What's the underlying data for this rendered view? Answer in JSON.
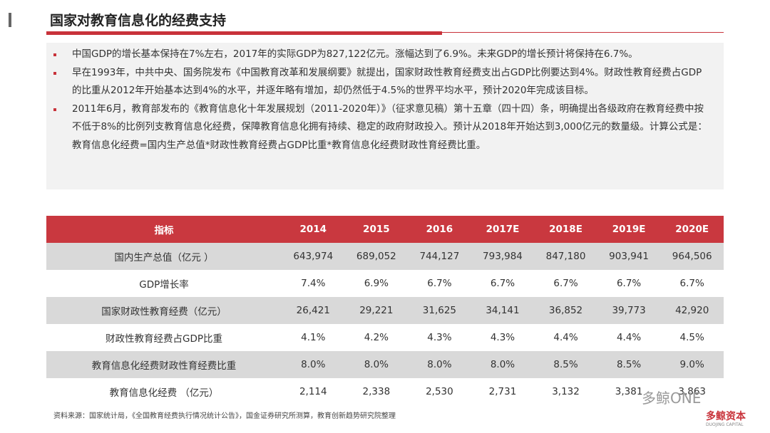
{
  "header": {
    "title": "国家对教育信息化的经费支持"
  },
  "bullets": [
    "中国GDP的增长基本保持在7%左右，2017年的实际GDP为827,122亿元。涨幅达到了6.9%。未来GDP的增长预计将保持在6.7%。",
    "早在1993年，中共中央、国务院发布《中国教育改革和发展纲要》就提出，国家财政性教育经费支出占GDP比例要达到4%。财政性教育经费占GDP的比重从2012年开始基本达到4%的水平，并逐年略有增加，却仍然低于4.5%的世界平均水平，预计2020年完成该目标。",
    "2011年6月，教育部发布的《教育信息化十年发展规划（2011-2020年）》（征求意见稿）第十五章（四十四）条，明确提出各级政府在教育经费中按不低于8%的比例列支教育信息化经费，保障教育信息化拥有持续、稳定的政府财政投入。预计从2018年开始达到3,000亿元的数量级。计算公式是：教育信息化经费=国内生产总值*财政性教育经费占GDP比重*教育信息化经费财政性育经费比重。"
  ],
  "table": {
    "header": [
      "指标",
      "2014",
      "2015",
      "2016",
      "2017E",
      "2018E",
      "2019E",
      "2020E"
    ],
    "rows": [
      [
        "国内生产总值（亿元 ）",
        "643,974",
        "689,052",
        "744,127",
        "793,984",
        "847,180",
        "903,941",
        "964,506"
      ],
      [
        "GDP增长率",
        "7.4%",
        "6.9%",
        "6.7%",
        "6.7%",
        "6.7%",
        "6.7%",
        "6.7%"
      ],
      [
        "国家财政性教育经费（亿元）",
        "26,421",
        "29,221",
        "31,625",
        "34,141",
        "36,852",
        "39,773",
        "42,920"
      ],
      [
        "财政性教育经费占GDP比重",
        "4.1%",
        "4.2%",
        "4.3%",
        "4.3%",
        "4.4%",
        "4.4%",
        "4.5%"
      ],
      [
        "教育信息化经费财政性育经费比重",
        "8.0%",
        "8.0%",
        "8.0%",
        "8.0%",
        "8.5%",
        "8.5%",
        "9.0%"
      ],
      [
        "教育信息化经费  （亿元）",
        "2,114",
        "2,338",
        "2,530",
        "2,731",
        "3,132",
        "3,381",
        "3,863"
      ]
    ]
  },
  "source": "资料来源：国家统计局，《全国教育经费执行情况统计公告》，国金证券研究所测算，教育创新趋势研究院整理",
  "watermark": {
    "account": "多鲸ONE",
    "logo": "多鲸资本",
    "logo_en": "DUOJING CAPITAL"
  }
}
